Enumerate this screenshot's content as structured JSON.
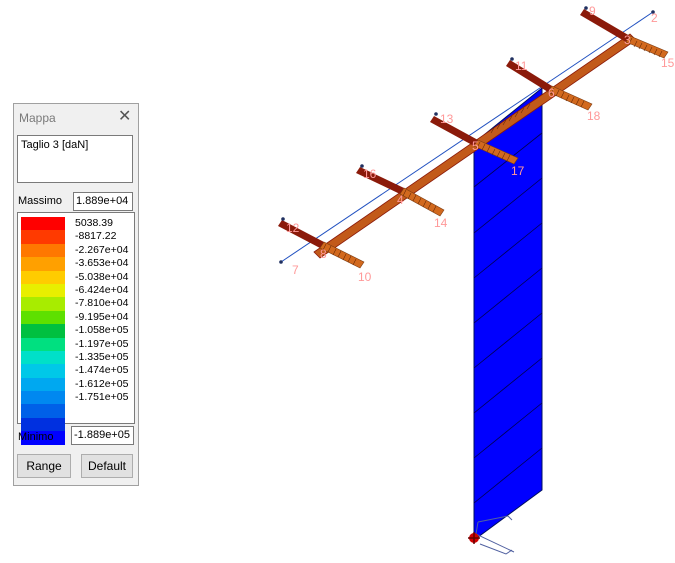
{
  "panel": {
    "title": "Mappa",
    "selection": "Taglio 3 [daN]",
    "max_label": "Massimo",
    "max_value": "1.889e+04",
    "min_label": "Minimo",
    "min_value": "-1.889e+05",
    "range_button": "Range",
    "default_button": "Default",
    "legend_colors": [
      "#ff0000",
      "#ff3a00",
      "#ff7800",
      "#ffa000",
      "#ffcc00",
      "#e8ef00",
      "#a8ec00",
      "#5ee000",
      "#00c040",
      "#00e080",
      "#00e0c8",
      "#00c8e8",
      "#00a8f0",
      "#0088f0",
      "#0060e8",
      "#0030e0",
      "#0000ff"
    ],
    "legend_values": [
      "5038.39",
      "-8817.22",
      "-2.267e+04",
      "-3.653e+04",
      "-5.038e+04",
      "-6.424e+04",
      "-7.810e+04",
      "-9.195e+04",
      "-1.058e+05",
      "-1.197e+05",
      "-1.335e+05",
      "-1.474e+05",
      "-1.612e+05",
      "-1.751e+05"
    ]
  },
  "node_labels": [
    "9",
    "2",
    "3",
    "15",
    "11",
    "6",
    "18",
    "13",
    "5",
    "17",
    "16",
    "4",
    "14",
    "12",
    "8",
    "10",
    "7"
  ],
  "colors": {
    "wall": "#0000ff",
    "beam_dark": "#8b1a0a",
    "beam_light": "#c25a1a",
    "hatch": "#d2691e",
    "node_label": "#ff9999"
  }
}
